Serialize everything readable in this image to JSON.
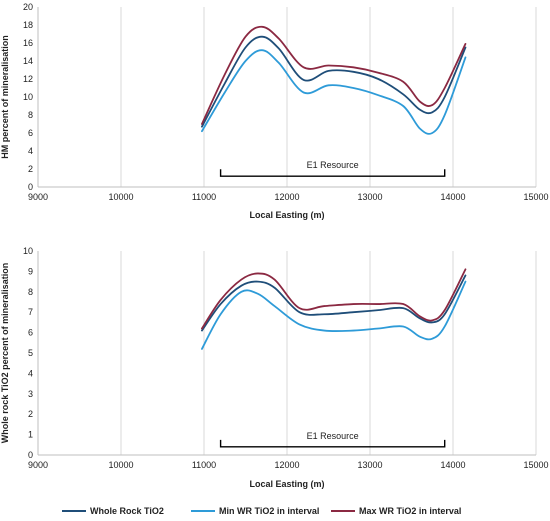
{
  "colors": {
    "whole_rock": "#1f4e79",
    "min": "#2e9bd8",
    "max": "#8b2942"
  },
  "legend": [
    {
      "label": "Whole Rock TiO2",
      "color": "#1f4e79"
    },
    {
      "label": "Min WR TiO2 in interval",
      "color": "#2e9bd8"
    },
    {
      "label": "Max WR TiO2 in interval",
      "color": "#8b2942"
    }
  ],
  "chart_data": [
    {
      "type": "line",
      "title": "",
      "xlabel": "Local Easting (m)",
      "ylabel": "HM percent of mineralisation",
      "xlim": [
        9000,
        15000
      ],
      "ylim": [
        0,
        20
      ],
      "xticks": [
        9000,
        10000,
        11000,
        12000,
        13000,
        14000,
        15000
      ],
      "yticks": [
        0,
        2,
        4,
        6,
        8,
        10,
        12,
        14,
        16,
        18,
        20
      ],
      "grid": "vertical",
      "annotation": {
        "label": "E1 Resource",
        "x_start": 11200,
        "x_end": 13900,
        "y": 1.2
      },
      "series": [
        {
          "name": "Whole Rock TiO2",
          "color": "#1f4e79",
          "x": [
            10975,
            11250,
            11500,
            11700,
            11900,
            12200,
            12500,
            12800,
            13100,
            13400,
            13600,
            13750,
            13900,
            14150
          ],
          "y": [
            6.7,
            11.5,
            15.5,
            16.7,
            15.4,
            11.9,
            12.9,
            12.8,
            12.0,
            10.3,
            8.6,
            8.3,
            10.0,
            15.5
          ]
        },
        {
          "name": "Min WR TiO2 in interval",
          "color": "#2e9bd8",
          "x": [
            10975,
            11250,
            11500,
            11700,
            11900,
            12200,
            12500,
            12800,
            13100,
            13400,
            13600,
            13750,
            13900,
            14150
          ],
          "y": [
            6.2,
            10.5,
            14.0,
            15.2,
            13.8,
            10.5,
            11.3,
            11.0,
            10.2,
            9.0,
            6.5,
            6.0,
            8.0,
            14.4
          ]
        },
        {
          "name": "Max WR TiO2 in interval",
          "color": "#8b2942",
          "x": [
            10975,
            11250,
            11500,
            11700,
            11900,
            12200,
            12500,
            12800,
            13100,
            13400,
            13600,
            13750,
            13900,
            14150
          ],
          "y": [
            7.0,
            12.5,
            16.7,
            17.8,
            16.5,
            13.3,
            13.5,
            13.3,
            12.7,
            11.7,
            9.5,
            9.1,
            11.0,
            15.9
          ]
        }
      ]
    },
    {
      "type": "line",
      "title": "",
      "xlabel": "Local Easting (m)",
      "ylabel": "Whole rock TiO2 percent of mineralisation",
      "xlim": [
        9000,
        15000
      ],
      "ylim": [
        0,
        10
      ],
      "xticks": [
        9000,
        10000,
        11000,
        12000,
        13000,
        14000,
        15000
      ],
      "yticks": [
        0,
        1,
        2,
        3,
        4,
        5,
        6,
        7,
        8,
        9,
        10
      ],
      "grid": "vertical",
      "annotation": {
        "label": "E1 Resource",
        "x_start": 11200,
        "x_end": 13900,
        "y": 0.4
      },
      "series": [
        {
          "name": "Whole Rock TiO2",
          "color": "#1f4e79",
          "x": [
            10975,
            11200,
            11450,
            11650,
            11850,
            12150,
            12450,
            12800,
            13100,
            13400,
            13600,
            13750,
            13900,
            14150
          ],
          "y": [
            6.1,
            7.4,
            8.3,
            8.5,
            8.2,
            7.0,
            6.9,
            7.0,
            7.1,
            7.2,
            6.7,
            6.5,
            6.9,
            8.8
          ]
        },
        {
          "name": "Min WR TiO2 in interval",
          "color": "#2e9bd8",
          "x": [
            10975,
            11200,
            11450,
            11650,
            11850,
            12150,
            12450,
            12800,
            13100,
            13400,
            13600,
            13750,
            13900,
            14150
          ],
          "y": [
            5.2,
            6.9,
            8.0,
            7.9,
            7.3,
            6.4,
            6.1,
            6.1,
            6.2,
            6.3,
            5.8,
            5.7,
            6.3,
            8.5
          ]
        },
        {
          "name": "Max WR TiO2 in interval",
          "color": "#8b2942",
          "x": [
            10975,
            11200,
            11450,
            11650,
            11850,
            12150,
            12450,
            12800,
            13100,
            13400,
            13600,
            13750,
            13900,
            14150
          ],
          "y": [
            6.2,
            7.6,
            8.6,
            8.9,
            8.6,
            7.2,
            7.3,
            7.4,
            7.4,
            7.4,
            6.8,
            6.6,
            7.1,
            9.1
          ]
        }
      ]
    }
  ]
}
